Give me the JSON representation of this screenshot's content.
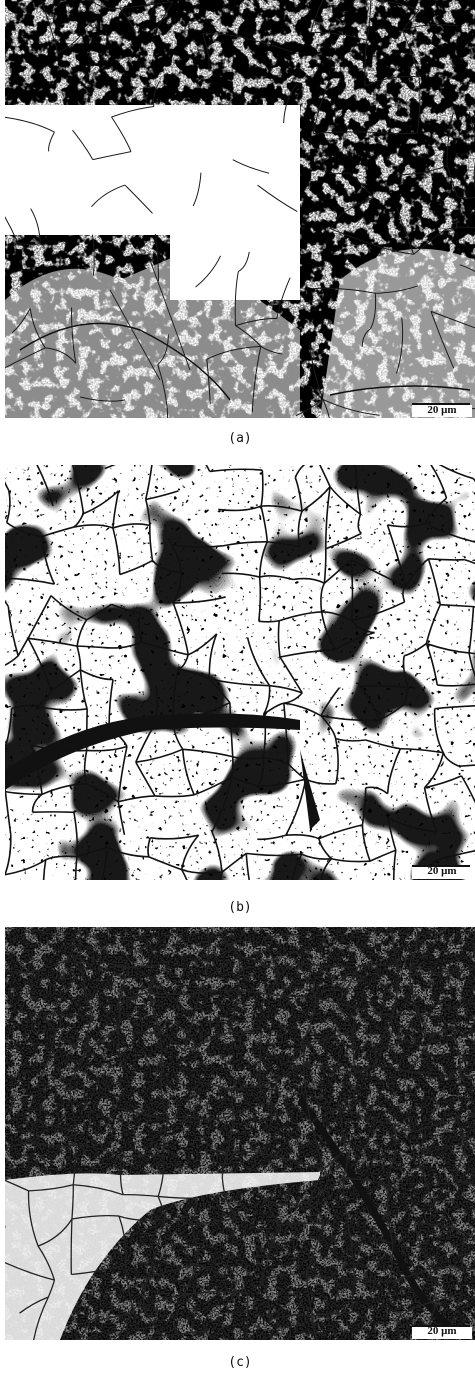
{
  "figure": {
    "panels": [
      {
        "label": "(a)",
        "scale_bar": "20 μm"
      },
      {
        "label": "(b)",
        "scale_bar": "20 μm"
      },
      {
        "label": "(c)",
        "scale_bar": "20 μm"
      }
    ]
  }
}
